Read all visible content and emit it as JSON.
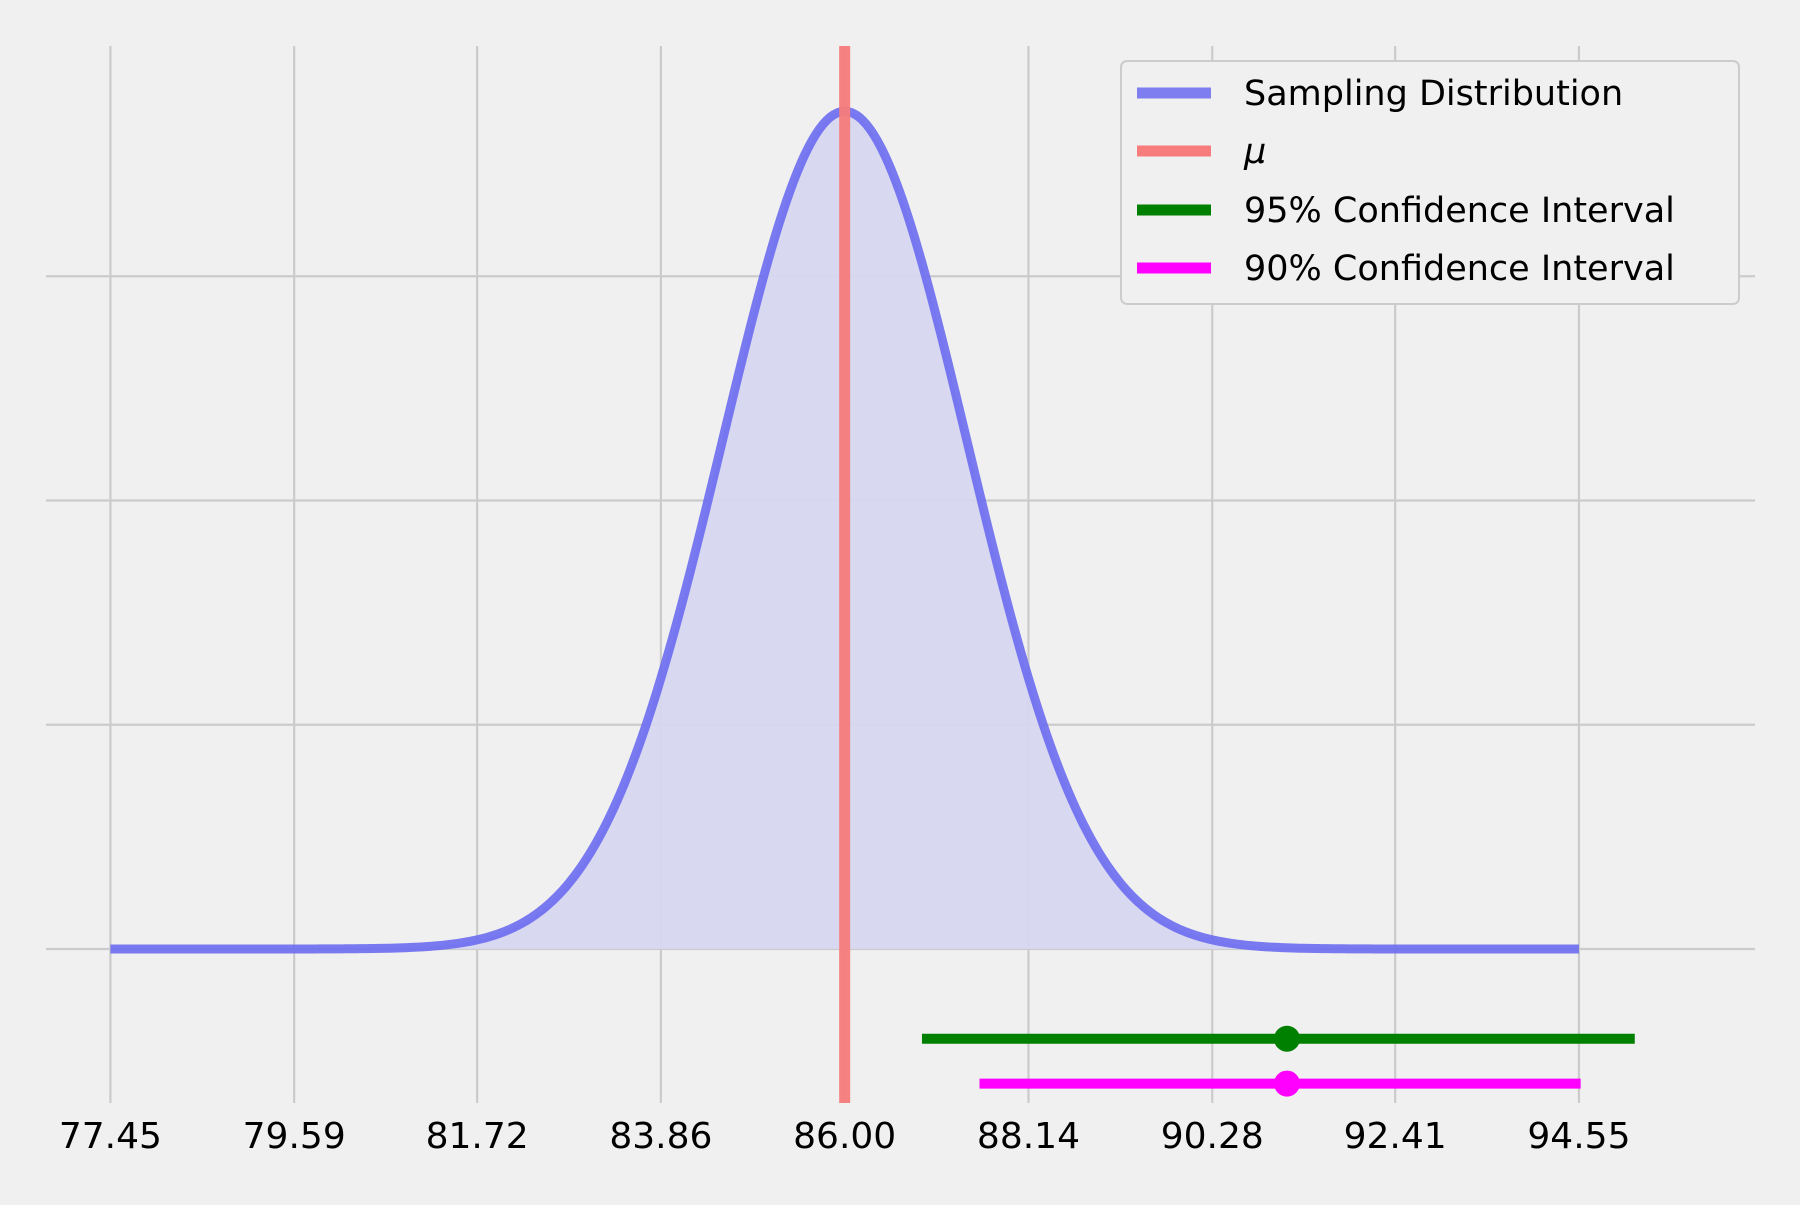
{
  "chart_data": {
    "type": "line",
    "title": "",
    "xlabel": "",
    "ylabel": "",
    "xlim": [
      76.7,
      96.6
    ],
    "ylim": [
      -0.0515,
      0.302
    ],
    "x_ticks": [
      77.45,
      79.59,
      81.72,
      83.86,
      86.0,
      88.14,
      90.28,
      92.41,
      94.55
    ],
    "x_tick_labels": [
      "77.45",
      "79.59",
      "81.72",
      "83.86",
      "86.00",
      "88.14",
      "90.28",
      "92.41",
      "94.55"
    ],
    "y_ticks": [
      0,
      0.075,
      0.15,
      0.225
    ],
    "y_tick_labels_shown": false,
    "grid": true,
    "legend_position": "top-right",
    "series": [
      {
        "name": "Sampling Distribution",
        "kind": "normal_pdf",
        "mean": 86.0,
        "sd": 1.424,
        "x_range": [
          77.45,
          94.55
        ],
        "filled": true,
        "color": "#6b6bf0",
        "fill_color": "#d6d6f0"
      },
      {
        "name": "μ",
        "kind": "vertical_line",
        "x": 86.0,
        "color": "#f77c7c"
      },
      {
        "name": "95% Confidence Interval",
        "kind": "interval",
        "lower": 86.9,
        "upper": 95.2,
        "point": 91.15,
        "y": -0.03,
        "color": "#008000"
      },
      {
        "name": "90% Confidence Interval",
        "kind": "interval",
        "lower": 87.57,
        "upper": 94.57,
        "point": 91.15,
        "y": -0.045,
        "color": "#ff00ff"
      }
    ],
    "legend_entries": [
      "Sampling Distribution",
      "μ",
      "95% Confidence Interval",
      "90% Confidence Interval"
    ]
  }
}
